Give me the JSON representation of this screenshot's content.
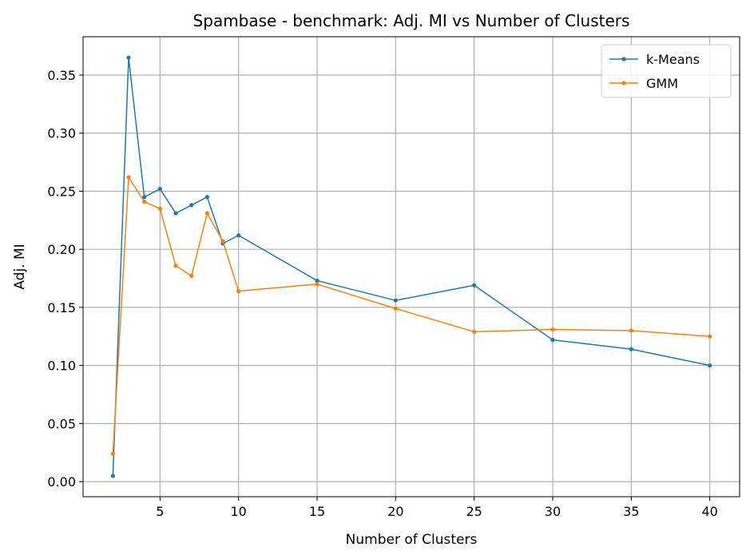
{
  "chart_data": {
    "type": "line",
    "title": "Spambase - benchmark: Adj. MI vs Number of Clusters",
    "xlabel": "Number of Clusters",
    "ylabel": "Adj. MI",
    "x": [
      2,
      3,
      4,
      5,
      6,
      7,
      8,
      9,
      10,
      15,
      20,
      25,
      30,
      35,
      40
    ],
    "series": [
      {
        "name": "k-Means",
        "color": "#1f77b4",
        "values": [
          0.005,
          0.365,
          0.245,
          0.252,
          0.231,
          0.238,
          0.245,
          0.205,
          0.212,
          0.173,
          0.156,
          0.169,
          0.122,
          0.114,
          0.1
        ]
      },
      {
        "name": "GMM",
        "color": "#ff7f0e",
        "values": [
          0.024,
          0.262,
          0.241,
          0.235,
          0.186,
          0.177,
          0.231,
          0.207,
          0.164,
          0.17,
          0.149,
          0.129,
          0.131,
          0.13,
          0.125
        ]
      }
    ],
    "xlim": [
      0.1,
      41.9
    ],
    "ylim": [
      -0.013,
      0.383
    ],
    "xticks": [
      5,
      10,
      15,
      20,
      25,
      30,
      35,
      40
    ],
    "yticks": [
      0.0,
      0.05,
      0.1,
      0.15,
      0.2,
      0.25,
      0.3,
      0.35
    ],
    "ytick_labels": [
      "0.00",
      "0.05",
      "0.10",
      "0.15",
      "0.20",
      "0.25",
      "0.30",
      "0.35"
    ],
    "grid": true,
    "legend_position": "top-right"
  }
}
